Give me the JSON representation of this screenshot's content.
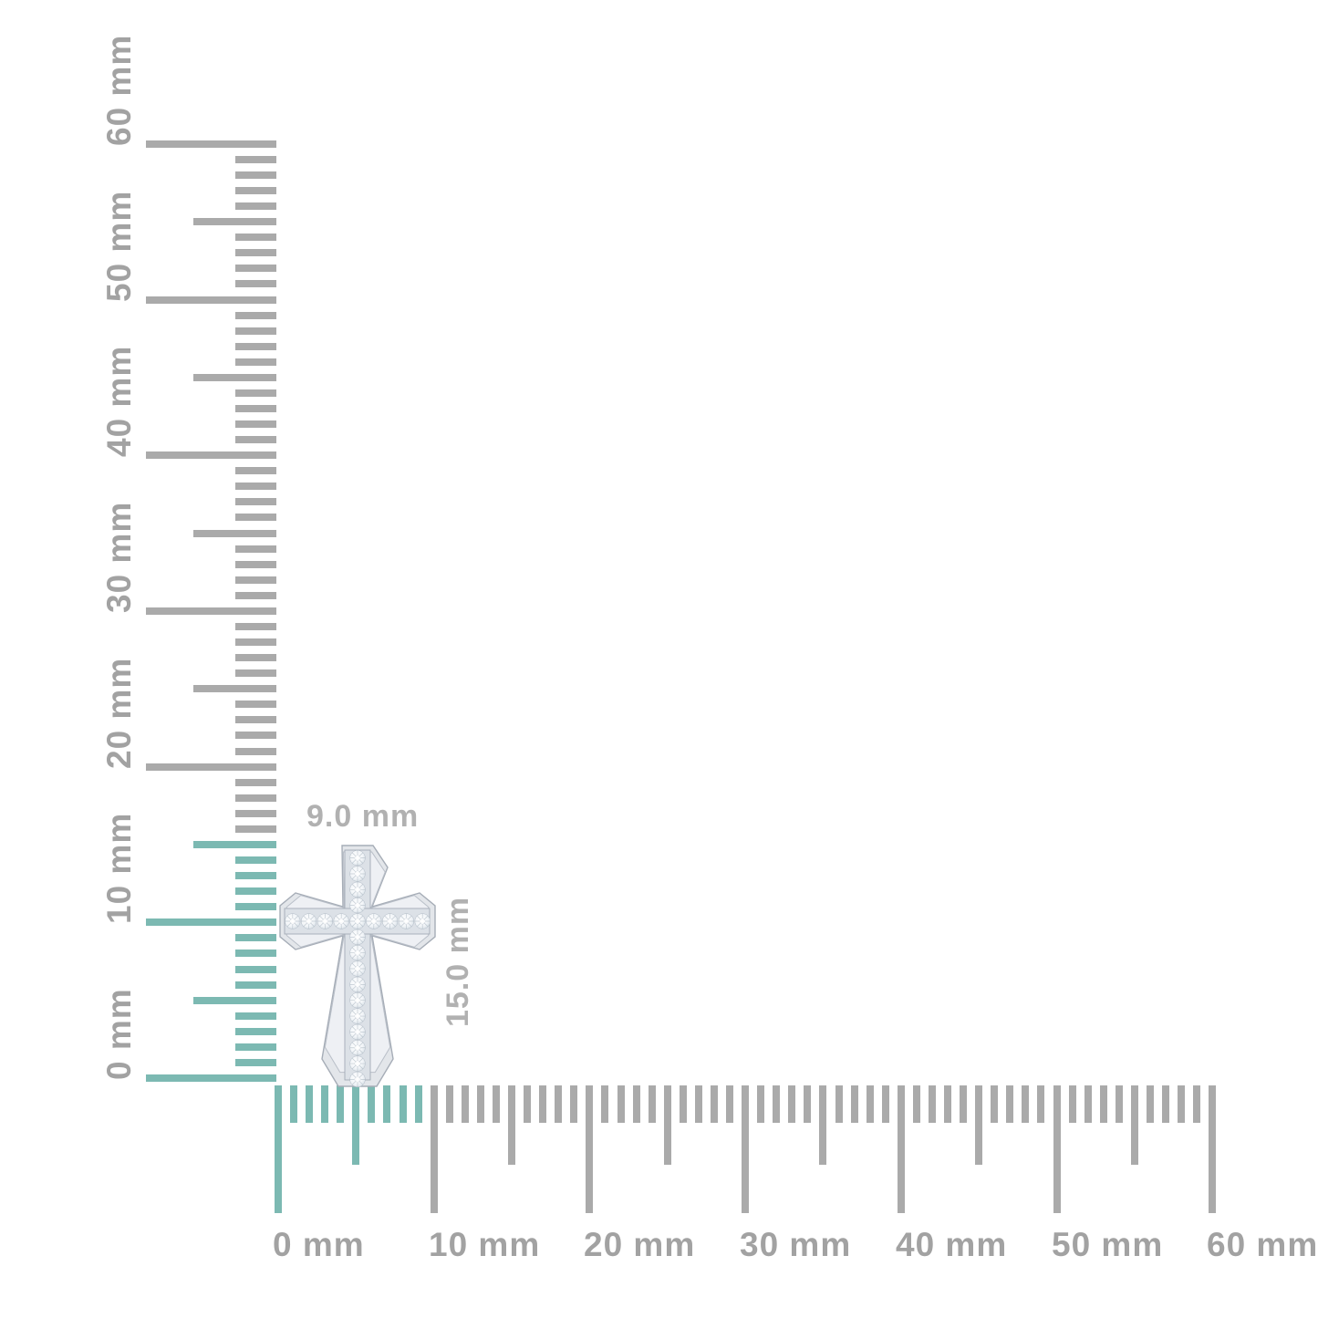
{
  "image_type": "product-dimension-diagram",
  "product": {
    "description": "diamond cross pendant",
    "width_label": "9.0 mm",
    "height_label": "15.0 mm"
  },
  "colors": {
    "highlight_teal": "#7cb9b2",
    "tick_gray": "#aaaaaa",
    "ruler_label_gray": "#a2a2a2",
    "dimension_label_gray": "#b1b1b1",
    "metal_outline": "#a6adb7",
    "metal_light": "#e3e6ea",
    "metal_face": "#eef0f4",
    "channel_fill": "#dce1e7",
    "stone_edge": "#c4cdd6"
  },
  "rulers": {
    "unit": "mm",
    "vertical": {
      "labels": [
        "0 mm",
        "10 mm",
        "20 mm",
        "30 mm",
        "40 mm",
        "50 mm",
        "60 mm"
      ],
      "min_mm": 0,
      "max_mm": 60,
      "minor_step_mm": 1,
      "half_step_mm": 5,
      "major_step_mm": 10,
      "highlighted_extent_mm": 15
    },
    "horizontal": {
      "labels": [
        "0 mm",
        "10 mm",
        "20 mm",
        "30 mm",
        "40 mm",
        "50 mm",
        "60 mm"
      ],
      "min_mm": 0,
      "max_mm": 60,
      "minor_step_mm": 1,
      "half_step_mm": 5,
      "major_step_mm": 10,
      "highlighted_extent_mm": 9
    }
  }
}
